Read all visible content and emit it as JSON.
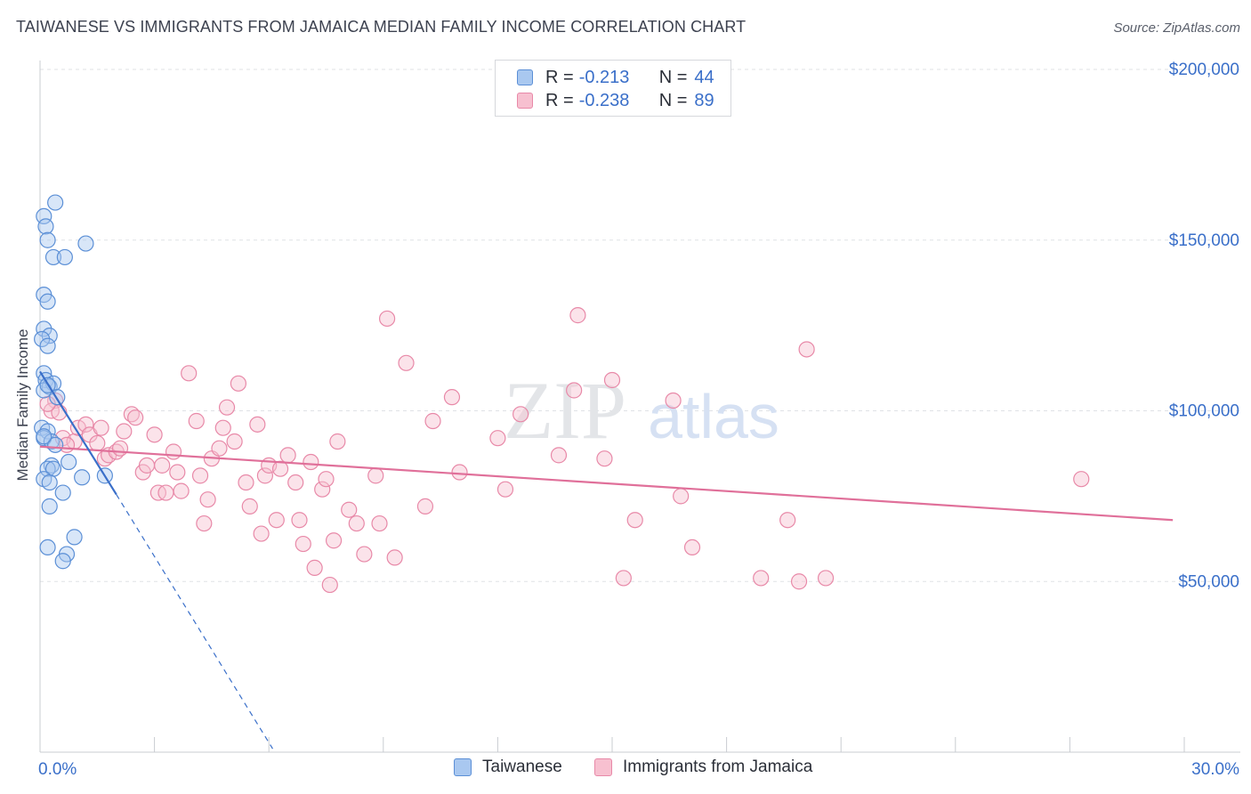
{
  "header": {
    "title": "TAIWANESE VS IMMIGRANTS FROM JAMAICA MEDIAN FAMILY INCOME CORRELATION CHART",
    "source": "Source: ZipAtlas.com"
  },
  "watermark": {
    "zip": "ZIP",
    "atlas": "atlas"
  },
  "legend": {
    "rows": [
      {
        "r_label": "R =",
        "r_value": "-0.213",
        "n_label": "N =",
        "n_value": "44"
      },
      {
        "r_label": "R =",
        "r_value": "-0.238",
        "n_label": "N =",
        "n_value": "89"
      }
    ]
  },
  "bottom_legend": {
    "taiwanese": "Taiwanese",
    "jamaica": "Immigrants from Jamaica"
  },
  "colors": {
    "taiwanese_fill": "#a9c8f0",
    "taiwanese_stroke": "#5b8fd6",
    "taiwanese_line": "#3a6fc9",
    "jamaica_fill": "#f7c0d0",
    "jamaica_stroke": "#e889a8",
    "jamaica_line": "#e0709a",
    "axis_text": "#3a6fc9",
    "grid": "#dfe2e6"
  },
  "chart_data": {
    "type": "scatter",
    "title": "TAIWANESE VS IMMIGRANTS FROM JAMAICA MEDIAN FAMILY INCOME CORRELATION CHART",
    "xlabel": "",
    "ylabel": "Median Family Income",
    "xlim": [
      0,
      30
    ],
    "ylim": [
      0,
      200000
    ],
    "x_tick_labels": [
      "0.0%",
      "30.0%"
    ],
    "y_ticks": [
      50000,
      100000,
      150000,
      200000
    ],
    "y_tick_labels": [
      "$50,000",
      "$100,000",
      "$150,000",
      "$200,000"
    ],
    "grid": true,
    "series": [
      {
        "name": "Taiwanese",
        "R": -0.213,
        "N": 44,
        "trend": {
          "x": [
            0.0,
            2.0
          ],
          "y": [
            111500,
            75500
          ],
          "extended_to": [
            6.1,
            1000
          ]
        },
        "points": [
          [
            0.4,
            161000
          ],
          [
            0.1,
            157000
          ],
          [
            0.15,
            154000
          ],
          [
            0.2,
            150000
          ],
          [
            1.2,
            149000
          ],
          [
            0.35,
            145000
          ],
          [
            0.65,
            145000
          ],
          [
            0.1,
            134000
          ],
          [
            0.2,
            132000
          ],
          [
            0.1,
            124000
          ],
          [
            0.25,
            122000
          ],
          [
            0.05,
            121000
          ],
          [
            0.2,
            119000
          ],
          [
            0.1,
            111000
          ],
          [
            0.15,
            109000
          ],
          [
            0.25,
            107000
          ],
          [
            0.35,
            108000
          ],
          [
            0.1,
            106000
          ],
          [
            0.2,
            107500
          ],
          [
            0.45,
            104000
          ],
          [
            0.05,
            95000
          ],
          [
            0.2,
            94000
          ],
          [
            0.1,
            92000
          ],
          [
            0.3,
            91000
          ],
          [
            0.4,
            90000
          ],
          [
            0.1,
            92500
          ],
          [
            0.3,
            84000
          ],
          [
            0.2,
            83000
          ],
          [
            0.35,
            83000
          ],
          [
            0.75,
            85000
          ],
          [
            0.1,
            80000
          ],
          [
            0.25,
            79000
          ],
          [
            1.1,
            80500
          ],
          [
            1.7,
            81000
          ],
          [
            0.6,
            76000
          ],
          [
            0.25,
            72000
          ],
          [
            0.2,
            60000
          ],
          [
            0.7,
            58000
          ],
          [
            0.6,
            56000
          ],
          [
            0.9,
            63000
          ]
        ]
      },
      {
        "name": "Immigrants from Jamaica",
        "R": -0.238,
        "N": 89,
        "trend": {
          "x": [
            0.0,
            29.7
          ],
          "y": [
            89500,
            68000
          ]
        },
        "points": [
          [
            0.4,
            103000
          ],
          [
            0.3,
            100000
          ],
          [
            0.5,
            99500
          ],
          [
            0.2,
            102000
          ],
          [
            0.6,
            92000
          ],
          [
            0.9,
            91000
          ],
          [
            0.7,
            90000
          ],
          [
            1.0,
            95000
          ],
          [
            1.2,
            96000
          ],
          [
            1.3,
            93000
          ],
          [
            1.5,
            90500
          ],
          [
            1.6,
            95000
          ],
          [
            1.7,
            86000
          ],
          [
            1.8,
            87000
          ],
          [
            2.0,
            88000
          ],
          [
            2.1,
            89000
          ],
          [
            2.2,
            94000
          ],
          [
            2.4,
            99000
          ],
          [
            2.5,
            98000
          ],
          [
            2.7,
            82000
          ],
          [
            2.8,
            84000
          ],
          [
            3.0,
            93000
          ],
          [
            3.1,
            76000
          ],
          [
            3.2,
            84000
          ],
          [
            3.3,
            76000
          ],
          [
            3.5,
            88000
          ],
          [
            3.6,
            82000
          ],
          [
            3.7,
            76500
          ],
          [
            3.9,
            111000
          ],
          [
            4.1,
            97000
          ],
          [
            4.2,
            81000
          ],
          [
            4.3,
            67000
          ],
          [
            4.4,
            74000
          ],
          [
            4.5,
            86000
          ],
          [
            4.7,
            89000
          ],
          [
            4.8,
            95000
          ],
          [
            4.9,
            101000
          ],
          [
            5.1,
            91000
          ],
          [
            5.2,
            108000
          ],
          [
            5.4,
            79000
          ],
          [
            5.5,
            72000
          ],
          [
            5.7,
            96000
          ],
          [
            5.8,
            64000
          ],
          [
            5.9,
            81000
          ],
          [
            6.0,
            84000
          ],
          [
            6.2,
            68000
          ],
          [
            6.3,
            83000
          ],
          [
            6.5,
            87000
          ],
          [
            6.7,
            79000
          ],
          [
            6.8,
            68000
          ],
          [
            6.9,
            61000
          ],
          [
            7.1,
            85000
          ],
          [
            7.2,
            54000
          ],
          [
            7.4,
            77000
          ],
          [
            7.5,
            80000
          ],
          [
            7.6,
            49000
          ],
          [
            7.7,
            62000
          ],
          [
            7.8,
            91000
          ],
          [
            8.1,
            71000
          ],
          [
            8.3,
            67000
          ],
          [
            8.5,
            58000
          ],
          [
            8.8,
            81000
          ],
          [
            8.9,
            67000
          ],
          [
            9.1,
            127000
          ],
          [
            9.3,
            57000
          ],
          [
            9.6,
            114000
          ],
          [
            10.1,
            72000
          ],
          [
            10.3,
            97000
          ],
          [
            10.8,
            104000
          ],
          [
            11.0,
            82000
          ],
          [
            12.0,
            92000
          ],
          [
            12.2,
            77000
          ],
          [
            12.6,
            99000
          ],
          [
            13.6,
            87000
          ],
          [
            14.0,
            106000
          ],
          [
            14.1,
            128000
          ],
          [
            14.8,
            86000
          ],
          [
            15.0,
            109000
          ],
          [
            15.3,
            51000
          ],
          [
            15.6,
            68000
          ],
          [
            16.6,
            103000
          ],
          [
            16.8,
            75000
          ],
          [
            17.1,
            60000
          ],
          [
            18.9,
            51000
          ],
          [
            19.6,
            68000
          ],
          [
            19.9,
            50000
          ],
          [
            20.1,
            118000
          ],
          [
            20.6,
            51000
          ],
          [
            27.3,
            80000
          ]
        ]
      }
    ]
  }
}
